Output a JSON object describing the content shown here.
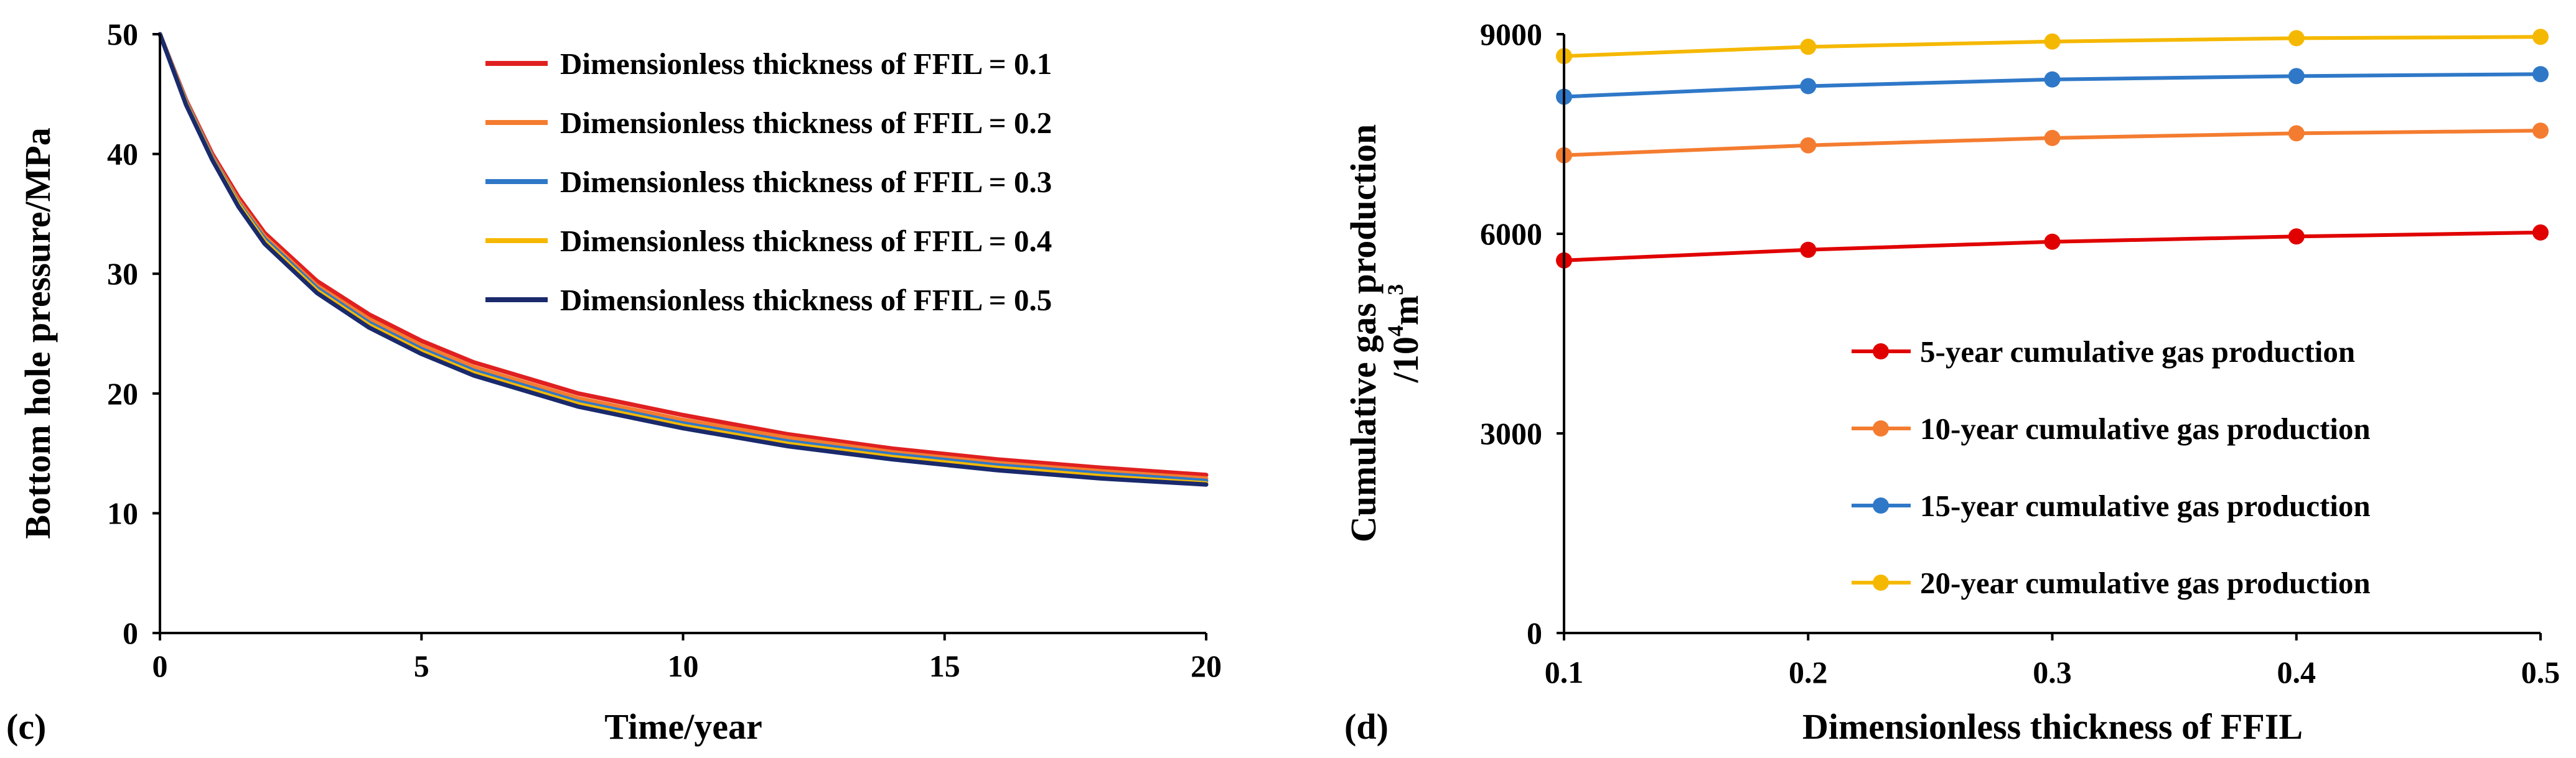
{
  "chart_data": [
    {
      "type": "line",
      "panel_label": "(c)",
      "title": "",
      "xlabel": "Time/year",
      "ylabel": "Bottom hole pressure/MPa",
      "xlim": [
        0,
        20
      ],
      "ylim": [
        0,
        50
      ],
      "xticks": [
        0,
        5,
        10,
        15,
        20
      ],
      "yticks": [
        0,
        10,
        20,
        30,
        40,
        50
      ],
      "grid": false,
      "legend_position": "top-right",
      "x": [
        0,
        0.5,
        1,
        1.5,
        2,
        3,
        4,
        5,
        6,
        8,
        10,
        12,
        14,
        16,
        18,
        20
      ],
      "series": [
        {
          "name": "Dimensionless thickness of FFIL = 0.1",
          "color": "#E02020",
          "values": [
            50,
            44.5,
            40.0,
            36.4,
            33.4,
            29.4,
            26.6,
            24.4,
            22.6,
            20.0,
            18.2,
            16.6,
            15.4,
            14.5,
            13.8,
            13.2
          ]
        },
        {
          "name": "Dimensionless thickness of FFIL = 0.2",
          "color": "#F47C30",
          "values": [
            50,
            44.4,
            39.8,
            36.1,
            33.1,
            29.0,
            26.2,
            24.0,
            22.2,
            19.6,
            17.8,
            16.3,
            15.1,
            14.2,
            13.5,
            12.9
          ]
        },
        {
          "name": "Dimensionless thickness of FFIL = 0.3",
          "color": "#2F78C8",
          "values": [
            50,
            44.3,
            39.7,
            35.9,
            32.9,
            28.8,
            25.9,
            23.7,
            21.9,
            19.3,
            17.5,
            16.0,
            14.9,
            14.0,
            13.3,
            12.7
          ]
        },
        {
          "name": "Dimensionless thickness of FFIL = 0.4",
          "color": "#F5B800",
          "values": [
            50,
            44.2,
            39.6,
            35.8,
            32.7,
            28.6,
            25.7,
            23.5,
            21.7,
            19.1,
            17.3,
            15.8,
            14.7,
            13.8,
            13.1,
            12.5
          ]
        },
        {
          "name": "Dimensionless thickness of FFIL = 0.5",
          "color": "#1A2A6C",
          "values": [
            50,
            44.1,
            39.5,
            35.6,
            32.5,
            28.4,
            25.5,
            23.3,
            21.5,
            18.9,
            17.1,
            15.6,
            14.5,
            13.6,
            12.9,
            12.4
          ]
        }
      ]
    },
    {
      "type": "line",
      "panel_label": "(d)",
      "title": "",
      "xlabel": "Dimensionless thickness of FFIL",
      "ylabel_line1": "Cumulative gas production",
      "ylabel_line2_base": "/10",
      "ylabel_line2_sup1": "4",
      "ylabel_line2_mid": "m",
      "ylabel_line2_sup2": "3",
      "xlim": [
        0.1,
        0.5
      ],
      "ylim": [
        0,
        9000
      ],
      "xticks": [
        0.1,
        0.2,
        0.3,
        0.4,
        0.5
      ],
      "yticks": [
        0,
        3000,
        6000,
        9000
      ],
      "grid": false,
      "markers": true,
      "legend_position": "bottom-right",
      "x": [
        0.1,
        0.2,
        0.3,
        0.4,
        0.5
      ],
      "series": [
        {
          "name": "5-year cumulative gas production",
          "color": "#E00000",
          "values": [
            5600,
            5760,
            5880,
            5960,
            6020
          ]
        },
        {
          "name": "10-year cumulative gas production",
          "color": "#F47C30",
          "values": [
            7180,
            7330,
            7440,
            7510,
            7550
          ]
        },
        {
          "name": "15-year cumulative gas production",
          "color": "#2F78C8",
          "values": [
            8060,
            8220,
            8320,
            8370,
            8400
          ]
        },
        {
          "name": "20-year cumulative gas production",
          "color": "#F5B800",
          "values": [
            8670,
            8810,
            8890,
            8940,
            8960
          ]
        }
      ]
    }
  ]
}
